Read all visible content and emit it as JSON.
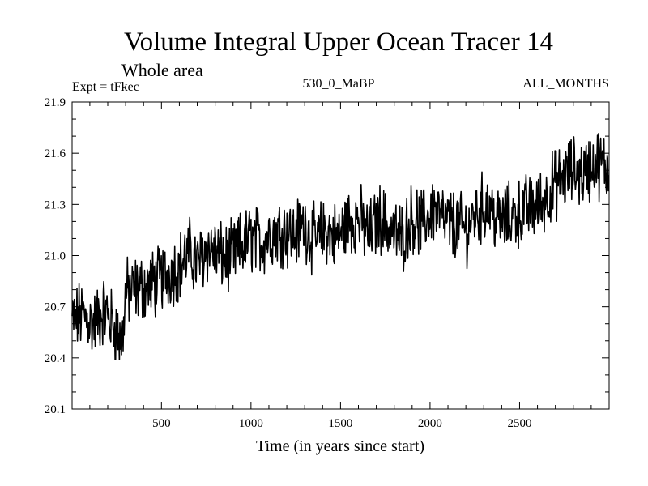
{
  "chart_data": {
    "type": "line",
    "title": "Volume Integral Upper Ocean Tracer 14",
    "subtitle": "Whole area",
    "info_left": "Expt = tFkec",
    "info_center": "530_0_MaBP",
    "info_right": "ALL_MONTHS",
    "xlabel": "Time (in years since start)",
    "ylabel": "",
    "xlim": [
      1,
      3000
    ],
    "ylim": [
      20.1,
      21.9
    ],
    "xticks": [
      500,
      1000,
      1500,
      2000,
      2500
    ],
    "xtick_labels": [
      "500",
      "1000",
      "1500",
      "2000",
      "2500"
    ],
    "yticks": [
      20.1,
      20.4,
      20.7,
      21.0,
      21.3,
      21.6,
      21.9
    ],
    "ytick_labels": [
      "20.1",
      "20.4",
      "20.7",
      "21.0",
      "21.3",
      "21.6",
      "21.9"
    ],
    "grid": false,
    "series": [
      {
        "x": [
          1,
          60,
          120,
          180,
          240,
          280,
          300,
          360,
          420,
          480,
          540,
          600,
          660,
          700,
          760,
          820,
          880,
          940,
          1000,
          1060,
          1120,
          1180,
          1240,
          1300,
          1360,
          1420,
          1480,
          1540,
          1600,
          1660,
          1720,
          1780,
          1840,
          1900,
          1960,
          2020,
          2080,
          2140,
          2200,
          2260,
          2320,
          2380,
          2440,
          2500,
          2560,
          2620,
          2680,
          2740,
          2800,
          2860,
          2920,
          2980,
          3000
        ],
        "values": [
          20.62,
          20.65,
          20.6,
          20.68,
          20.58,
          20.48,
          20.78,
          20.8,
          20.82,
          20.85,
          20.9,
          20.94,
          21.02,
          20.95,
          21.05,
          21.0,
          20.98,
          21.05,
          21.1,
          21.08,
          21.14,
          21.15,
          21.12,
          21.18,
          21.08,
          21.15,
          21.1,
          21.2,
          21.22,
          21.12,
          21.22,
          21.15,
          21.1,
          21.22,
          21.18,
          21.28,
          21.2,
          21.18,
          21.15,
          21.25,
          21.3,
          21.2,
          21.22,
          21.25,
          21.28,
          21.3,
          21.4,
          21.45,
          21.5,
          21.48,
          21.55,
          21.52,
          21.5
        ]
      }
    ]
  }
}
